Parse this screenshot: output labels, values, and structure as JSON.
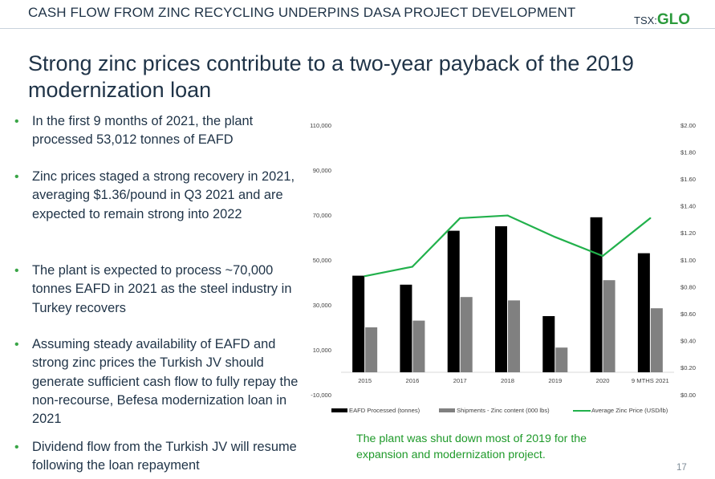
{
  "header": {
    "title": "CASH FLOW FROM ZINC RECYCLING UNDERPINS DASA PROJECT DEVELOPMENT",
    "logo_prefix": "TSX:",
    "logo_name": "GLO"
  },
  "slide_title": "Strong zinc prices contribute to a two-year payback of the 2019 modernization loan",
  "bullets": [
    "In the first 9 months of 2021, the plant processed 53,012 tonnes of EAFD",
    "Zinc prices staged a strong recovery in 2021, averaging $1.36/pound in Q3 2021 and are expected to remain strong into 2022",
    "The plant is expected to process ~70,000 tonnes EAFD in 2021 as the steel industry in Turkey recovers",
    "Assuming steady availability of EAFD and strong zinc prices the Turkish JV should generate sufficient cash flow to fully repay the non-recourse, Befesa modernization loan in 2021",
    "Dividend flow from the Turkish JV will resume following the loan repayment"
  ],
  "note": "The plant was shut down most of 2019 for the expansion and modernization project.",
  "page_number": "17",
  "colors": {
    "text": "#1f3347",
    "bullet": "#3aa547",
    "note": "#1f9a2a",
    "eafd_bar": "#000000",
    "shipments_bar": "#808080",
    "zinc_line": "#22b14c"
  },
  "chart_data": {
    "type": "bar",
    "categories": [
      "2015",
      "2016",
      "2017",
      "2018",
      "2019",
      "2020",
      "9 MTHS 2021"
    ],
    "series": [
      {
        "name": "EAFD Processed (tonnes)",
        "type": "bar",
        "axis": "left",
        "values": [
          43000,
          39000,
          63000,
          65000,
          25000,
          69000,
          53000
        ]
      },
      {
        "name": "Shipments - Zinc content (000 lbs)",
        "type": "bar",
        "axis": "left",
        "values": [
          20000,
          23000,
          33500,
          32000,
          11000,
          41000,
          28500
        ]
      },
      {
        "name": "Average Zinc Price (USD/lb)",
        "type": "line",
        "axis": "right",
        "values": [
          0.88,
          0.95,
          1.31,
          1.33,
          1.17,
          1.03,
          1.31
        ]
      }
    ],
    "left_axis": {
      "ylim": [
        -10000,
        110000
      ],
      "ticks": [
        -10000,
        10000,
        30000,
        50000,
        70000,
        90000,
        110000
      ],
      "tick_labels": [
        "-10,000",
        "10,000",
        "30,000",
        "50,000",
        "70,000",
        "90,000",
        "110,000"
      ]
    },
    "right_axis": {
      "ylim": [
        0,
        2.0
      ],
      "ticks": [
        0,
        0.2,
        0.4,
        0.6,
        0.8,
        1.0,
        1.2,
        1.4,
        1.6,
        1.8,
        2.0
      ],
      "tick_labels": [
        "$0.00",
        "$0.20",
        "$0.40",
        "$0.60",
        "$0.80",
        "$1.00",
        "$1.20",
        "$1.40",
        "$1.60",
        "$1.80",
        "$2.00"
      ]
    },
    "grid": false,
    "legend": "bottom"
  }
}
